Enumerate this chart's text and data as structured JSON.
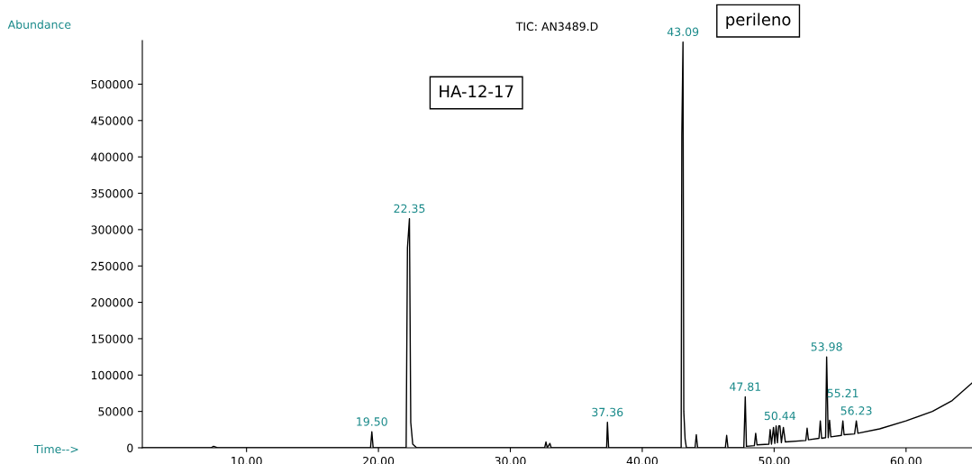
{
  "chart_data": {
    "type": "line",
    "title": "TIC: AN3489.D",
    "ylabel": "Abundance",
    "xlabel": "Time-->",
    "x": [
      2.1,
      7.3,
      7.5,
      7.8,
      19.4,
      19.5,
      19.6,
      22.1,
      22.2,
      22.35,
      22.45,
      22.6,
      22.9,
      32.6,
      32.7,
      32.8,
      33.0,
      33.1,
      37.3,
      37.36,
      37.45,
      42.95,
      43.0,
      43.09,
      43.15,
      43.25,
      43.35,
      44.0,
      44.1,
      44.2,
      46.3,
      46.4,
      46.5,
      47.7,
      47.81,
      47.9,
      48.5,
      48.6,
      48.7,
      49.6,
      49.7,
      49.8,
      49.95,
      50.05,
      50.15,
      50.25,
      50.35,
      50.44,
      50.55,
      50.7,
      50.85,
      52.4,
      52.5,
      52.6,
      53.4,
      53.5,
      53.6,
      53.9,
      53.98,
      54.1,
      54.2,
      54.3,
      55.1,
      55.21,
      55.3,
      56.1,
      56.23,
      56.35,
      58.0,
      60.0,
      62.0,
      63.5,
      65.0
    ],
    "series": [
      {
        "color": "#000000",
        "values": [
          0,
          0,
          2000,
          0,
          0,
          22000,
          0,
          0,
          275000,
          315000,
          35000,
          5000,
          0,
          0,
          8000,
          0,
          6000,
          0,
          0,
          35000,
          0,
          0,
          430000,
          558000,
          50000,
          12000,
          0,
          0,
          18000,
          0,
          0,
          17000,
          0,
          0,
          70000,
          2000,
          3000,
          20000,
          4000,
          5000,
          25000,
          5000,
          28000,
          6000,
          30000,
          7000,
          30000,
          30000,
          7000,
          28000,
          8000,
          10000,
          27000,
          11000,
          13000,
          37000,
          13000,
          14000,
          125000,
          14000,
          38000,
          15000,
          17000,
          37000,
          18000,
          19000,
          37000,
          20000,
          26000,
          37000,
          50000,
          65000,
          89000
        ]
      }
    ],
    "xlim": [
      2.1,
      65.0
    ],
    "ylim": [
      0,
      560000
    ],
    "xticks": [
      {
        "value": 10,
        "label": "10.00"
      },
      {
        "value": 20,
        "label": "20.00"
      },
      {
        "value": 30,
        "label": "30.00"
      },
      {
        "value": 40,
        "label": "40.00"
      },
      {
        "value": 50,
        "label": "50.00"
      },
      {
        "value": 60,
        "label": "60.00"
      }
    ],
    "yticks": [
      0,
      50000,
      100000,
      150000,
      200000,
      250000,
      300000,
      350000,
      400000,
      450000,
      500000
    ],
    "grid": false,
    "marker": "none",
    "line_style": "solid",
    "annotations": [
      "HA-12-17",
      "perileno",
      {
        "text": "19.50",
        "x": 19.5,
        "y": 22000
      },
      {
        "text": "22.35",
        "x": 22.35,
        "y": 315000
      },
      {
        "text": "37.36",
        "x": 37.36,
        "y": 35000
      },
      {
        "text": "43.09",
        "x": 43.09,
        "y": 558000
      },
      {
        "text": "47.81",
        "x": 47.81,
        "y": 70000
      },
      {
        "text": "50.44",
        "x": 50.44,
        "y": 30000
      },
      {
        "text": "53.98",
        "x": 53.98,
        "y": 125000
      },
      {
        "text": "55.21",
        "x": 55.21,
        "y": 37000
      },
      {
        "text": "56.23",
        "x": 56.23,
        "y": 37000
      }
    ]
  }
}
